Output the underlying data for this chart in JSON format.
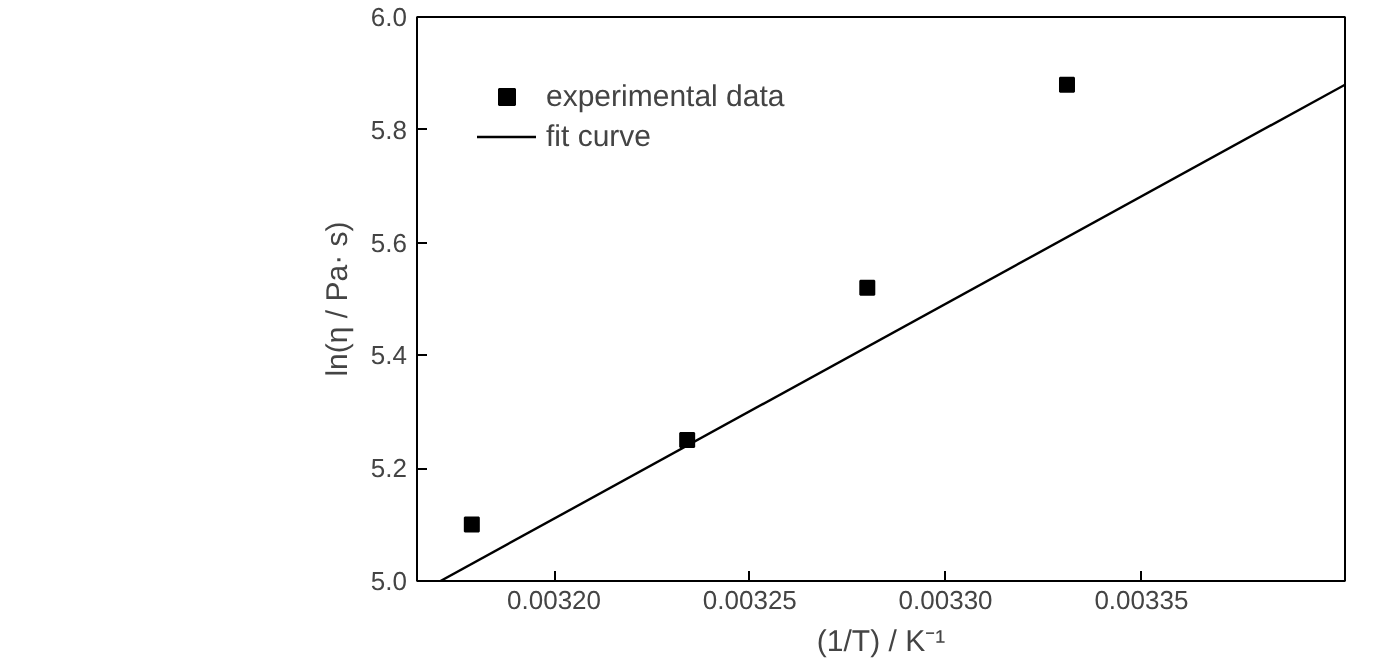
{
  "chart_data": {
    "type": "scatter",
    "xlabel": "(1/T) / K⁻¹",
    "ylabel": "ln(η / Pa· s)",
    "x": [
      0.003179,
      0.003234,
      0.00328,
      0.003331
    ],
    "series": [
      {
        "name": "experimental data",
        "color": "#000000",
        "marker": "square",
        "values": [
          5.1,
          5.25,
          5.52,
          5.88
        ]
      },
      {
        "name": "fit curve",
        "type": "line",
        "color": "#000000",
        "line_style": "solid",
        "x": [
          0.003171,
          0.003402
        ],
        "values": [
          5.0,
          5.88
        ]
      }
    ],
    "xlim": [
      0.003165,
      0.003402
    ],
    "ylim": [
      5.0,
      6.0
    ],
    "xticks": [
      {
        "value": 0.0032,
        "label": "0.00320"
      },
      {
        "value": 0.00325,
        "label": "0.00325"
      },
      {
        "value": 0.0033,
        "label": "0.00330"
      },
      {
        "value": 0.00335,
        "label": "0.00335"
      }
    ],
    "yticks": [
      {
        "value": 5.0,
        "label": "5.0"
      },
      {
        "value": 5.2,
        "label": "5.2"
      },
      {
        "value": 5.4,
        "label": "5.4"
      },
      {
        "value": 5.6,
        "label": "5.6"
      },
      {
        "value": 5.8,
        "label": "5.8"
      },
      {
        "value": 6.0,
        "label": "6.0"
      }
    ],
    "grid": false,
    "legend": "top left"
  }
}
